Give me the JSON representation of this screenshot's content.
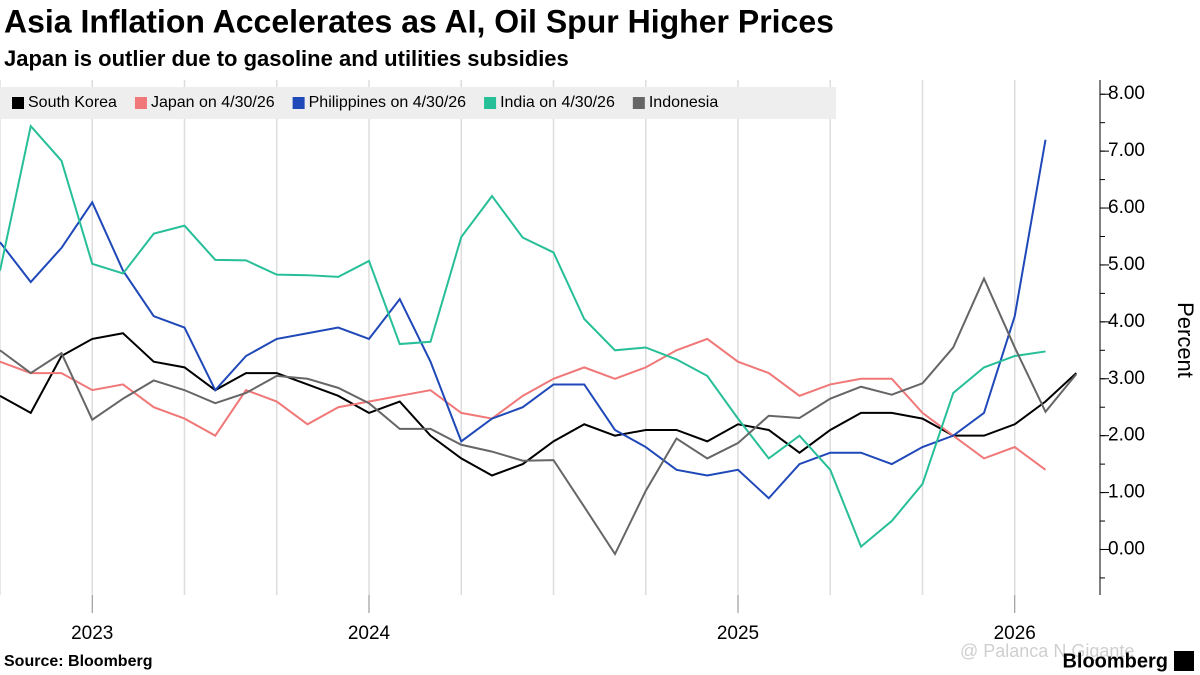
{
  "chart_data": {
    "type": "line",
    "title": "Asia Inflation Accelerates as AI, Oil Spur Higher Prices",
    "subtitle": "Japan is outlier due to gasoline and utilities subsidies",
    "y_label": "Percent",
    "source": "Source: Bloomberg",
    "brand": "Bloomberg",
    "watermark": "@ Palanca N Gigante",
    "categories": [
      null,
      null,
      null,
      "2023",
      null,
      null,
      null,
      null,
      null,
      null,
      null,
      null,
      "2024",
      null,
      null,
      null,
      null,
      null,
      null,
      null,
      null,
      null,
      null,
      null,
      "2025",
      null,
      null,
      null,
      null,
      null,
      null,
      null,
      null,
      "2026",
      null,
      null
    ],
    "ylim": [
      -0.8,
      8.25
    ],
    "yticks": [
      {
        "value": 0,
        "label": "0.00"
      },
      {
        "value": 1,
        "label": "1.00"
      },
      {
        "value": 2,
        "label": "2.00"
      },
      {
        "value": 3,
        "label": "3.00"
      },
      {
        "value": 4,
        "label": "4.00"
      },
      {
        "value": 5,
        "label": "5.00"
      },
      {
        "value": 6,
        "label": "6.00"
      },
      {
        "value": 7,
        "label": "7.00"
      },
      {
        "value": 8,
        "label": "8.00"
      }
    ],
    "legend": "top-left",
    "series": [
      {
        "name": "South Korea",
        "color": "#000000",
        "values": [
          2.7,
          2.4,
          3.4,
          3.7,
          3.8,
          3.3,
          3.2,
          2.8,
          3.1,
          3.1,
          2.9,
          2.7,
          2.4,
          2.6,
          2.0,
          1.6,
          1.3,
          1.5,
          1.9,
          2.2,
          2.0,
          2.1,
          2.1,
          1.9,
          2.2,
          2.1,
          1.7,
          2.1,
          2.4,
          2.4,
          2.3,
          2.0,
          2.0,
          2.2,
          2.6,
          3.1
        ]
      },
      {
        "name": "Japan on 4/30/26",
        "color": "#f07878",
        "values": [
          3.3,
          3.1,
          3.1,
          2.8,
          2.9,
          2.5,
          2.3,
          2.0,
          2.8,
          2.6,
          2.2,
          2.5,
          2.6,
          2.7,
          2.8,
          2.4,
          2.3,
          2.7,
          3.0,
          3.2,
          3.0,
          3.2,
          3.5,
          3.7,
          3.3,
          3.1,
          2.7,
          2.9,
          3.0,
          3.0,
          2.4,
          2.0,
          1.6,
          1.8,
          1.4,
          null
        ]
      },
      {
        "name": "Philippines on 4/30/26",
        "color": "#1f48b8",
        "values": [
          5.4,
          4.7,
          5.3,
          6.1,
          4.9,
          4.1,
          3.9,
          2.8,
          3.4,
          3.7,
          3.8,
          3.9,
          3.7,
          4.4,
          3.3,
          1.9,
          2.3,
          2.5,
          2.9,
          2.9,
          2.1,
          1.8,
          1.4,
          1.3,
          1.4,
          0.9,
          1.5,
          1.7,
          1.7,
          1.5,
          1.8,
          2.0,
          2.4,
          4.1,
          7.2,
          null
        ]
      },
      {
        "name": "India on 4/30/26",
        "color": "#27bf98",
        "values": [
          4.9,
          7.44,
          6.83,
          5.02,
          4.85,
          5.55,
          5.69,
          5.09,
          5.08,
          4.83,
          4.82,
          4.79,
          5.07,
          3.61,
          3.65,
          5.49,
          6.21,
          5.48,
          5.22,
          4.05,
          3.5,
          3.55,
          3.34,
          3.05,
          2.3,
          1.6,
          2.0,
          1.4,
          0.05,
          0.5,
          1.15,
          2.75,
          3.2,
          3.4,
          3.48,
          null
        ]
      },
      {
        "name": "Indonesia",
        "color": "#666666",
        "values": [
          3.5,
          3.1,
          3.45,
          2.28,
          2.65,
          2.97,
          2.8,
          2.57,
          2.75,
          3.05,
          3.0,
          2.84,
          2.57,
          2.12,
          2.12,
          1.84,
          1.72,
          1.56,
          1.57,
          0.75,
          -0.08,
          1.03,
          1.95,
          1.6,
          1.87,
          2.35,
          2.31,
          2.65,
          2.86,
          2.72,
          2.92,
          3.55,
          4.76,
          3.55,
          2.42,
          3.08
        ]
      }
    ]
  }
}
